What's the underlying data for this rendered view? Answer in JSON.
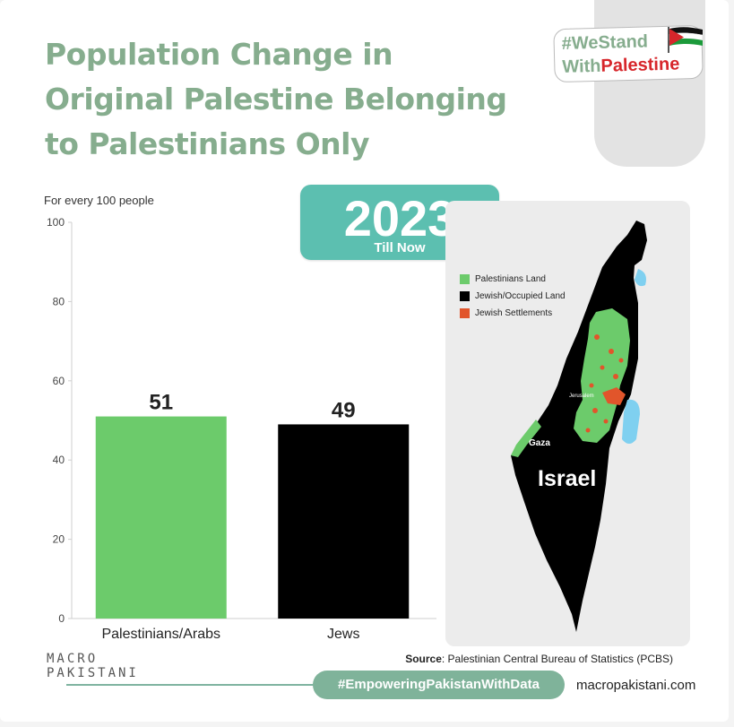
{
  "title": "Population Change in\nOriginal Palestine Belonging\nto Palestinians Only",
  "badge": {
    "line1": "#WeStand",
    "line2_a": "With",
    "line2_b": "Palestine"
  },
  "year_box": {
    "year": "2023",
    "subtitle": "Till Now"
  },
  "unit_label": "For every 100 people",
  "chart_data": {
    "type": "bar",
    "categories": [
      "Palestinians/Arabs",
      "Jews"
    ],
    "values": [
      51,
      49
    ],
    "data_labels": [
      "51",
      "49"
    ],
    "ylim": [
      0,
      100
    ],
    "yticks": [
      0,
      20,
      40,
      60,
      80,
      100
    ],
    "colors": [
      "#6ccb6b",
      "#000000"
    ],
    "grid": false
  },
  "map": {
    "legend": [
      {
        "label": "Palestinians Land",
        "color": "#6ccb6b"
      },
      {
        "label": "Jewish/Occupied Land",
        "color": "#000000"
      },
      {
        "label": "Jewish Settlements",
        "color": "#e1552b"
      }
    ],
    "labels": {
      "gaza": "Gaza",
      "jerusalem": "Jerusalem",
      "israel": "Israel"
    },
    "water_color": "#7fd0f0"
  },
  "source": {
    "prefix": "Source",
    "text": ": Palestinian Central Bureau of Statistics (PCBS)"
  },
  "logo": {
    "line1": "MACRO",
    "line2": "PAKISTANI"
  },
  "hashtag": "#EmpoweringPakistanWithData",
  "website": "macropakistani.com"
}
